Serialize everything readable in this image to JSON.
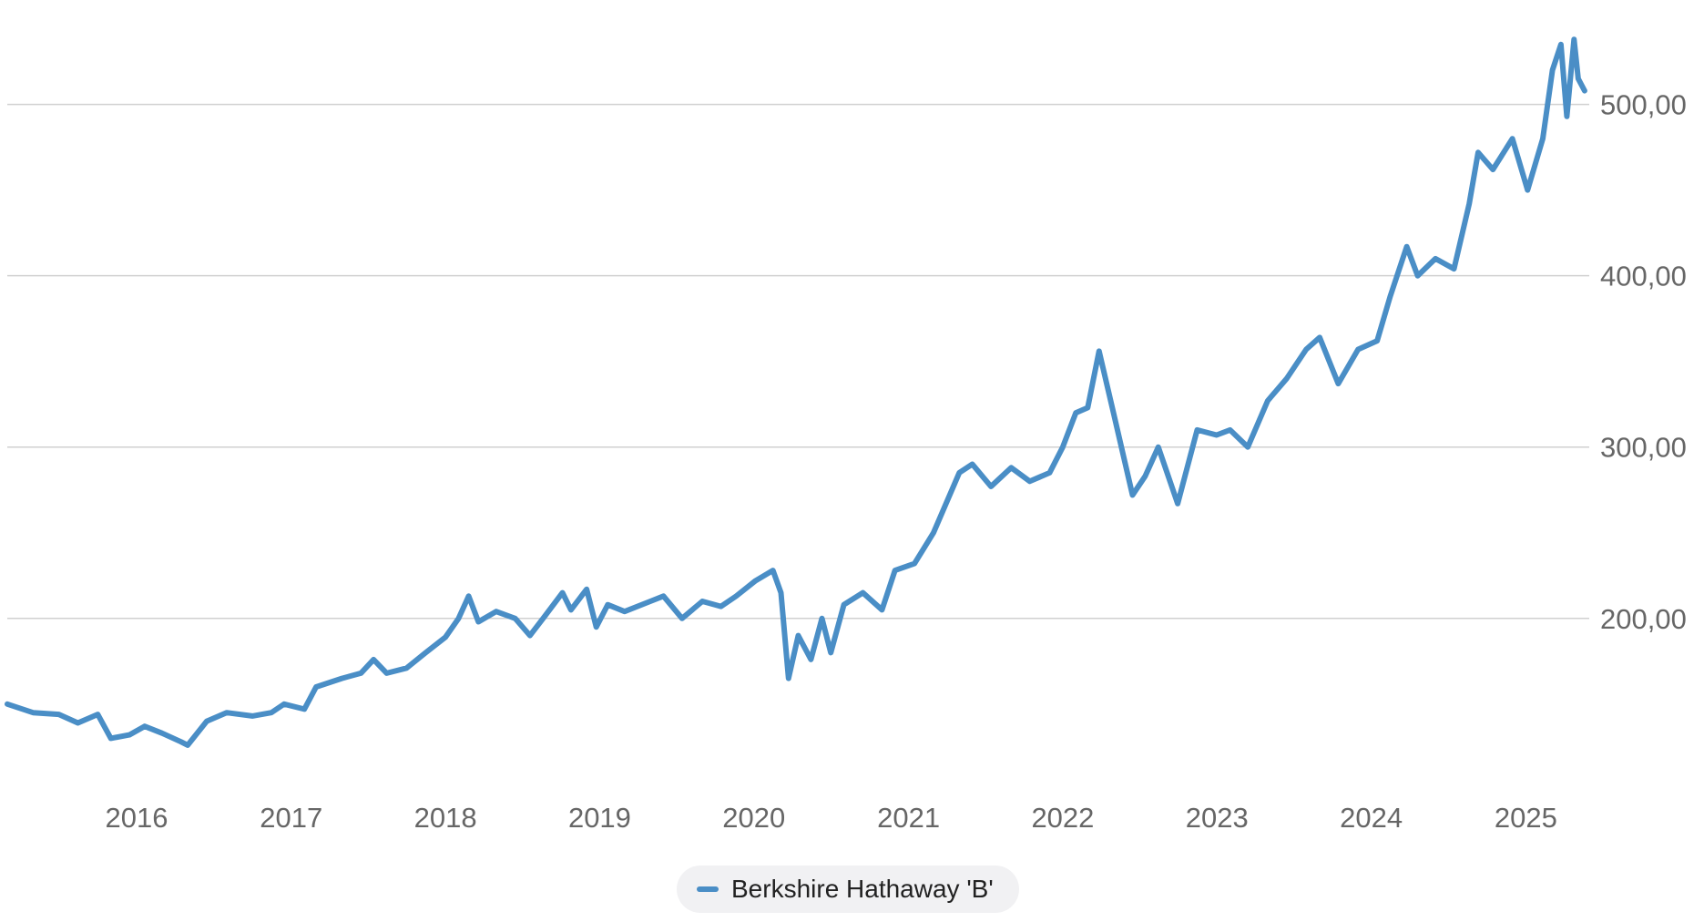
{
  "chart_data": {
    "type": "line",
    "title": "",
    "xlabel": "",
    "ylabel": "",
    "x_range": [
      "2015-03-01",
      "2025-05-31"
    ],
    "ylim": [
      110,
      545
    ],
    "y_ticks": [
      200,
      300,
      400,
      500
    ],
    "y_tick_labels": [
      "200,00",
      "300,00",
      "400,00",
      "500,00"
    ],
    "x_ticks": [
      "2016-01-01",
      "2017-01-01",
      "2018-01-01",
      "2019-01-01",
      "2020-01-01",
      "2021-01-01",
      "2022-01-01",
      "2023-01-01",
      "2024-01-01",
      "2025-01-01"
    ],
    "x_tick_labels": [
      "2016",
      "2017",
      "2018",
      "2019",
      "2020",
      "2021",
      "2022",
      "2023",
      "2024",
      "2025"
    ],
    "y_axis_position": "right",
    "grid": "horizontal",
    "legend_position": "bottom-center",
    "series": [
      {
        "name": "Berkshire Hathaway 'B'",
        "color": "#4a8ec6",
        "points": [
          [
            "2015-03-01",
            150
          ],
          [
            "2015-05-01",
            145
          ],
          [
            "2015-07-01",
            144
          ],
          [
            "2015-08-15",
            139
          ],
          [
            "2015-10-01",
            144
          ],
          [
            "2015-11-01",
            130
          ],
          [
            "2015-12-15",
            132
          ],
          [
            "2016-01-20",
            137
          ],
          [
            "2016-03-01",
            133
          ],
          [
            "2016-04-15",
            128
          ],
          [
            "2016-05-01",
            126
          ],
          [
            "2016-06-15",
            140
          ],
          [
            "2016-08-01",
            145
          ],
          [
            "2016-10-01",
            143
          ],
          [
            "2016-11-15",
            145
          ],
          [
            "2016-12-15",
            150
          ],
          [
            "2017-02-01",
            147
          ],
          [
            "2017-03-01",
            160
          ],
          [
            "2017-05-01",
            165
          ],
          [
            "2017-06-15",
            168
          ],
          [
            "2017-07-15",
            176
          ],
          [
            "2017-08-15",
            168
          ],
          [
            "2017-10-01",
            171
          ],
          [
            "2017-11-15",
            180
          ],
          [
            "2018-01-01",
            189
          ],
          [
            "2018-02-01",
            200
          ],
          [
            "2018-02-25",
            213
          ],
          [
            "2018-03-20",
            198
          ],
          [
            "2018-05-01",
            204
          ],
          [
            "2018-06-15",
            200
          ],
          [
            "2018-07-20",
            190
          ],
          [
            "2018-08-20",
            200
          ],
          [
            "2018-10-05",
            215
          ],
          [
            "2018-10-25",
            205
          ],
          [
            "2018-12-01",
            217
          ],
          [
            "2018-12-24",
            195
          ],
          [
            "2019-01-20",
            208
          ],
          [
            "2019-03-01",
            204
          ],
          [
            "2019-05-01",
            210
          ],
          [
            "2019-06-01",
            213
          ],
          [
            "2019-07-15",
            200
          ],
          [
            "2019-09-01",
            210
          ],
          [
            "2019-10-15",
            207
          ],
          [
            "2019-11-20",
            213
          ],
          [
            "2020-01-05",
            222
          ],
          [
            "2020-02-15",
            228
          ],
          [
            "2020-03-05",
            215
          ],
          [
            "2020-03-23",
            165
          ],
          [
            "2020-04-15",
            190
          ],
          [
            "2020-05-15",
            176
          ],
          [
            "2020-06-10",
            200
          ],
          [
            "2020-07-01",
            180
          ],
          [
            "2020-08-01",
            208
          ],
          [
            "2020-09-15",
            215
          ],
          [
            "2020-10-30",
            205
          ],
          [
            "2020-11-30",
            228
          ],
          [
            "2021-01-15",
            232
          ],
          [
            "2021-03-01",
            250
          ],
          [
            "2021-05-01",
            285
          ],
          [
            "2021-06-01",
            290
          ],
          [
            "2021-07-15",
            277
          ],
          [
            "2021-09-01",
            288
          ],
          [
            "2021-10-15",
            280
          ],
          [
            "2021-12-01",
            285
          ],
          [
            "2022-01-01",
            300
          ],
          [
            "2022-02-01",
            320
          ],
          [
            "2022-03-01",
            323
          ],
          [
            "2022-03-28",
            356
          ],
          [
            "2022-05-01",
            320
          ],
          [
            "2022-06-15",
            272
          ],
          [
            "2022-07-15",
            283
          ],
          [
            "2022-08-15",
            300
          ],
          [
            "2022-09-30",
            267
          ],
          [
            "2022-11-15",
            310
          ],
          [
            "2022-12-31",
            307
          ],
          [
            "2023-02-01",
            310
          ],
          [
            "2023-03-15",
            300
          ],
          [
            "2023-05-01",
            327
          ],
          [
            "2023-06-15",
            340
          ],
          [
            "2023-07-31",
            357
          ],
          [
            "2023-09-01",
            364
          ],
          [
            "2023-10-15",
            337
          ],
          [
            "2023-12-01",
            357
          ],
          [
            "2024-01-15",
            362
          ],
          [
            "2024-02-15",
            388
          ],
          [
            "2024-03-25",
            417
          ],
          [
            "2024-04-20",
            400
          ],
          [
            "2024-06-01",
            410
          ],
          [
            "2024-07-15",
            404
          ],
          [
            "2024-08-20",
            442
          ],
          [
            "2024-09-10",
            472
          ],
          [
            "2024-10-15",
            462
          ],
          [
            "2024-11-30",
            480
          ],
          [
            "2025-01-05",
            450
          ],
          [
            "2025-02-10",
            480
          ],
          [
            "2025-03-05",
            520
          ],
          [
            "2025-03-25",
            535
          ],
          [
            "2025-04-08",
            493
          ],
          [
            "2025-04-25",
            538
          ],
          [
            "2025-05-05",
            515
          ],
          [
            "2025-05-20",
            508
          ]
        ]
      }
    ]
  }
}
